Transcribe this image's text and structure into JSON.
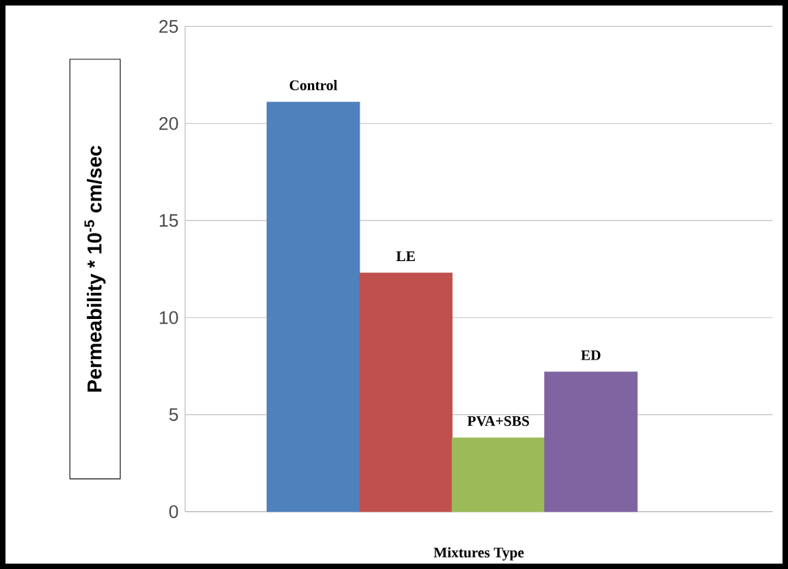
{
  "chart_data": {
    "type": "bar",
    "xlabel": "Mixtures Type",
    "ylabel": "Permeability * 10$^{-5}$ cm/sec",
    "categories": [
      null
    ],
    "series": [
      {
        "name": "Control",
        "color": "#4f81bd",
        "values": [
          21.1
        ]
      },
      {
        "name": "LE",
        "color": "#c0504d",
        "values": [
          12.3
        ]
      },
      {
        "name": "PVA+SBS",
        "color": "#9bbb59",
        "values": [
          3.8
        ]
      },
      {
        "name": "ED",
        "color": "#8064a2",
        "values": [
          7.2
        ]
      }
    ],
    "ylim": [
      0,
      25
    ],
    "yticks": [
      0,
      5,
      10,
      15,
      20,
      25
    ],
    "grid": "y",
    "legend": false
  }
}
